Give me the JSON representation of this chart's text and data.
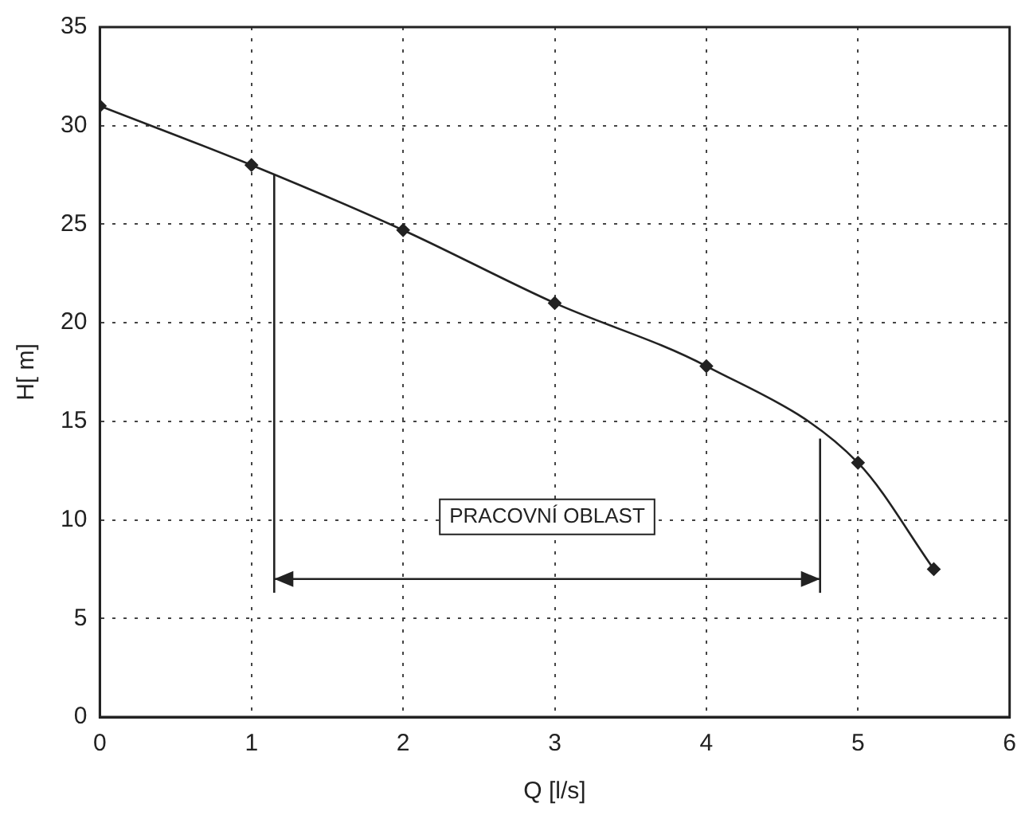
{
  "chart_data": {
    "type": "line",
    "xlabel": "Q [l/s]",
    "ylabel": "H[ m]",
    "x": [
      0,
      1,
      2,
      3,
      4,
      5,
      5.5
    ],
    "series": [
      {
        "color": "#222222",
        "values": [
          31,
          28,
          24.7,
          21,
          17.8,
          12.9,
          7.5
        ]
      }
    ],
    "xlim": [
      0,
      6
    ],
    "xticks": [
      0,
      1,
      2,
      3,
      4,
      5,
      6
    ],
    "ylim": [
      0,
      35
    ],
    "yticks": [
      0,
      5,
      10,
      15,
      20,
      25,
      30,
      35
    ],
    "grid": true,
    "legend": false,
    "marker": "diamond",
    "line_style": "solid",
    "ref_lines": [
      {
        "axis": "x",
        "value": 1.15,
        "color": "#222222"
      },
      {
        "axis": "x",
        "value": 4.75,
        "color": "#222222"
      }
    ],
    "annotations": [
      "PRACOVNÍ OBLAST"
    ]
  }
}
